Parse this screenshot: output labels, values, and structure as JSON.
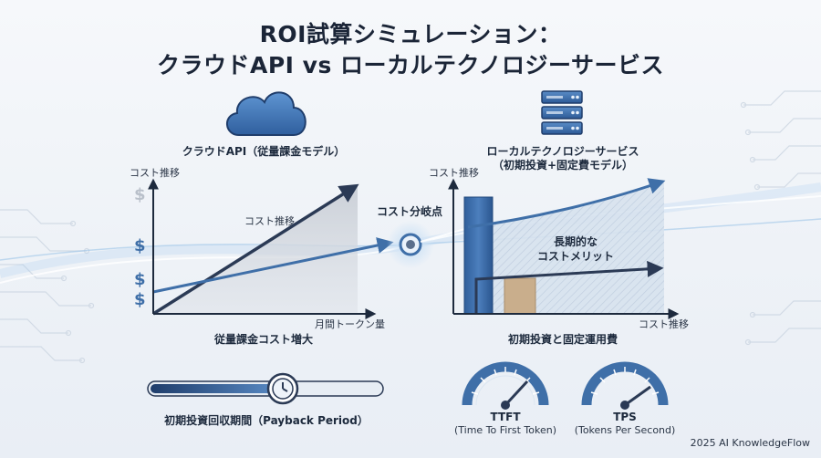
{
  "title": {
    "line1": "ROI試算シミュレーション：",
    "line2": "クラウドAPI vs ローカルテクノロジーサービス"
  },
  "cloud": {
    "icon": "cloud-icon",
    "heading": "クラウドAPI（従量課金モデル）",
    "y_axis_label": "コスト推移",
    "x_axis_label": "月間トークン量",
    "line_label": "コスト推移",
    "caption": "従量課金コスト増大",
    "dollar_marks": [
      "$",
      "$",
      "$",
      "$"
    ]
  },
  "breakeven": {
    "label": "コスト分岐点"
  },
  "local": {
    "icon": "server-icon",
    "heading_line1": "ローカルテクノロジーサービス",
    "heading_line2": "（初期投資+固定費モデル）",
    "y_axis_label": "コスト推移",
    "x_axis_label": "コスト推移",
    "benefit_line1": "長期的な",
    "benefit_line2": "コストメリット",
    "caption": "初期投資と固定運用費"
  },
  "payback": {
    "icon": "clock-icon",
    "label": "初期投資回収期間（Payback Period）"
  },
  "gauges": [
    {
      "icon": "gauge-icon",
      "name": "TTFT",
      "desc": "(Time To First Token)"
    },
    {
      "icon": "gauge-icon",
      "name": "TPS",
      "desc": "(Tokens Per Second)"
    }
  ],
  "footer": {
    "copyright": "2025 AI KnowledgeFlow"
  },
  "colors": {
    "navy": "#2b3a55",
    "blue": "#3f6fa8",
    "light_blue": "#7fb2dc",
    "tan": "#c9ae8c"
  }
}
